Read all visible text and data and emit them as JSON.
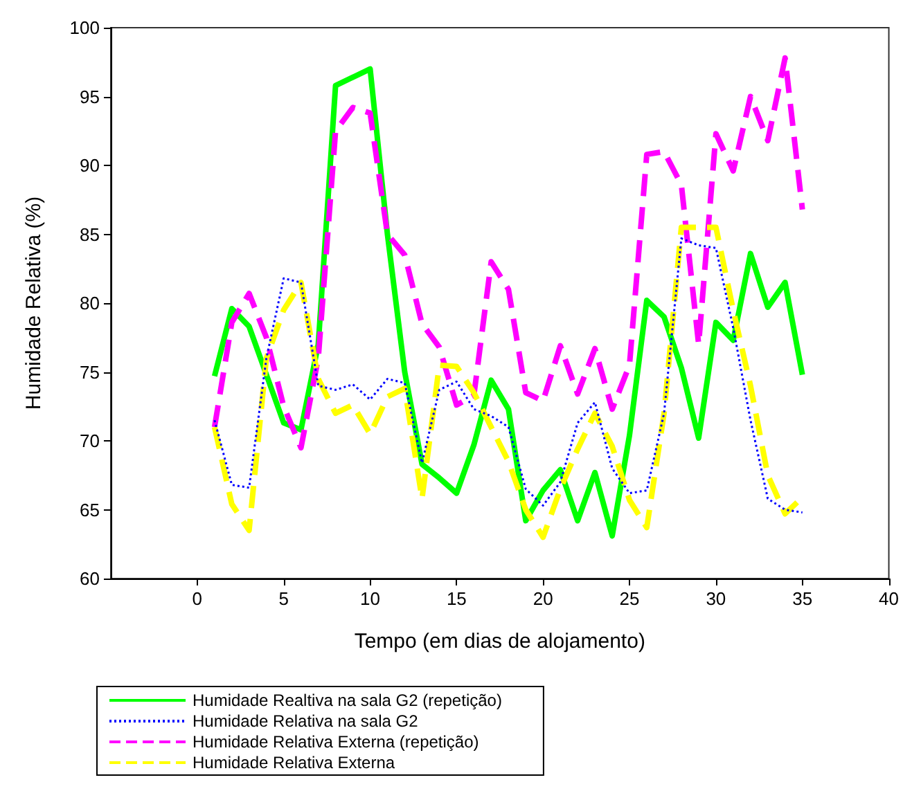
{
  "chart_data": {
    "type": "line",
    "xlabel": "Tempo (em dias de alojamento)",
    "ylabel": "Humidade Relativa (%)",
    "x": [
      1,
      2,
      3,
      4,
      5,
      6,
      7,
      8,
      9,
      10,
      11,
      12,
      13,
      14,
      15,
      16,
      17,
      18,
      19,
      20,
      21,
      22,
      23,
      24,
      25,
      26,
      27,
      28,
      29,
      30,
      31,
      32,
      33,
      34,
      35
    ],
    "xlim": [
      -5,
      40
    ],
    "xticks": [
      0,
      5,
      10,
      15,
      20,
      25,
      30,
      35,
      40
    ],
    "ylim": [
      60,
      100
    ],
    "yticks": [
      60,
      65,
      70,
      75,
      80,
      85,
      90,
      95,
      100
    ],
    "grid": false,
    "legend": "bottom",
    "marker": "none",
    "series": [
      {
        "name": "Humidade Realtiva na sala G2 (repetição)",
        "color": "#00ff00",
        "line_style": "solid",
        "values": [
          74.7,
          79.6,
          78.3,
          74.8,
          71.3,
          70.8,
          77,
          95.8,
          96.4,
          97,
          85,
          75,
          68.3,
          67.3,
          66.2,
          69.7,
          74.4,
          72.3,
          64.2,
          66.4,
          67.9,
          64.2,
          67.7,
          63.1,
          70.4,
          80.2,
          79,
          75.3,
          70.2,
          78.6,
          77.3,
          83.6,
          79.7,
          81.5,
          74.8
        ]
      },
      {
        "name": "Humidade Relativa na sala G2",
        "color": "#0000ff",
        "line_style": "dotted",
        "values": [
          71.5,
          66.8,
          66.6,
          76,
          81.8,
          81.5,
          74,
          73.7,
          74.1,
          73,
          74.5,
          74.2,
          68.4,
          73.7,
          74.3,
          72.3,
          71.8,
          71,
          66.5,
          65.3,
          67,
          71.3,
          72.8,
          68,
          66.2,
          66.4,
          72,
          84.7,
          84.2,
          84,
          78.2,
          71.5,
          65.8,
          65,
          64.8
        ]
      },
      {
        "name": "Humidade Relativa Externa (repetição)",
        "color": "#ff00ff",
        "line_style": "dashed",
        "values": [
          71,
          78.6,
          80.7,
          77.5,
          72.5,
          69.5,
          76,
          92.5,
          94.2,
          93.8,
          85,
          83.5,
          78.5,
          76.8,
          72.6,
          73.3,
          83,
          81,
          73.5,
          72.9,
          76.9,
          73.4,
          76.7,
          72.3,
          75.5,
          90.8,
          91,
          88.6,
          77,
          92.3,
          89.6,
          95,
          91.8,
          97.8,
          86.8
        ]
      },
      {
        "name": "Humidade Relativa Externa",
        "color": "#ffff00",
        "line_style": "dashed",
        "values": [
          71,
          65.4,
          63.5,
          76,
          79.5,
          81.5,
          74.5,
          72,
          72.6,
          70.5,
          73.2,
          73.8,
          65.8,
          75.5,
          75.4,
          73.5,
          71,
          68.5,
          65,
          63,
          66.5,
          69.4,
          72,
          69.6,
          65.7,
          63.7,
          72,
          85.5,
          85.5,
          85.5,
          79.5,
          74,
          67.5,
          64.7,
          65.9
        ]
      }
    ]
  }
}
